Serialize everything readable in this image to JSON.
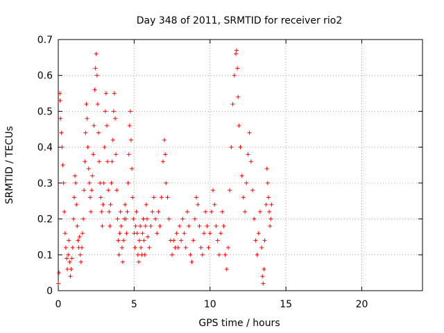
{
  "chart_data": {
    "type": "scatter",
    "title": "Day 348 of 2011, SRMTID for receiver rio2",
    "xlabel": "GPS time / hours",
    "ylabel": "SRMTID / TECUs",
    "xlim": [
      0,
      24
    ],
    "ylim": [
      0,
      0.7
    ],
    "x_ticks": [
      "0",
      "5",
      "10",
      "15",
      "20"
    ],
    "y_ticks": [
      "0",
      "0.1",
      "0.2",
      "0.3",
      "0.4",
      "0.5",
      "0.6",
      "0.7"
    ],
    "grid": true,
    "marker": "plus",
    "series": [
      {
        "color": "#ff0000",
        "points": [
          [
            0.0,
            0.02
          ],
          [
            0.05,
            0.05
          ],
          [
            0.1,
            0.55
          ],
          [
            0.12,
            0.53
          ],
          [
            0.15,
            0.48
          ],
          [
            0.2,
            0.44
          ],
          [
            0.25,
            0.4
          ],
          [
            0.3,
            0.35
          ],
          [
            0.35,
            0.3
          ],
          [
            0.4,
            0.22
          ],
          [
            0.45,
            0.16
          ],
          [
            0.5,
            0.12
          ],
          [
            0.55,
            0.09
          ],
          [
            0.6,
            0.06
          ],
          [
            0.65,
            0.1
          ],
          [
            0.7,
            0.14
          ],
          [
            0.75,
            0.08
          ],
          [
            0.8,
            0.04
          ],
          [
            0.85,
            0.06
          ],
          [
            0.9,
            0.09
          ],
          [
            0.95,
            0.12
          ],
          [
            1.0,
            0.2
          ],
          [
            1.05,
            0.26
          ],
          [
            1.1,
            0.32
          ],
          [
            1.15,
            0.3
          ],
          [
            1.2,
            0.24
          ],
          [
            1.25,
            0.18
          ],
          [
            1.3,
            0.14
          ],
          [
            1.35,
            0.12
          ],
          [
            1.4,
            0.15
          ],
          [
            1.45,
            0.1
          ],
          [
            1.5,
            0.08
          ],
          [
            1.55,
            0.12
          ],
          [
            1.6,
            0.16
          ],
          [
            1.65,
            0.2
          ],
          [
            1.7,
            0.28
          ],
          [
            1.75,
            0.36
          ],
          [
            1.8,
            0.44
          ],
          [
            1.85,
            0.52
          ],
          [
            1.9,
            0.48
          ],
          [
            1.95,
            0.4
          ],
          [
            2.0,
            0.34
          ],
          [
            2.05,
            0.3
          ],
          [
            2.1,
            0.26
          ],
          [
            2.15,
            0.22
          ],
          [
            2.2,
            0.28
          ],
          [
            2.25,
            0.32
          ],
          [
            2.3,
            0.38
          ],
          [
            2.35,
            0.46
          ],
          [
            2.4,
            0.56
          ],
          [
            2.45,
            0.62
          ],
          [
            2.5,
            0.66
          ],
          [
            2.55,
            0.6
          ],
          [
            2.6,
            0.52
          ],
          [
            2.65,
            0.44
          ],
          [
            2.7,
            0.36
          ],
          [
            2.75,
            0.3
          ],
          [
            2.8,
            0.26
          ],
          [
            2.85,
            0.22
          ],
          [
            2.9,
            0.18
          ],
          [
            2.95,
            0.24
          ],
          [
            3.0,
            0.3
          ],
          [
            3.05,
            0.4
          ],
          [
            3.1,
            0.5
          ],
          [
            3.15,
            0.55
          ],
          [
            3.2,
            0.46
          ],
          [
            3.25,
            0.36
          ],
          [
            3.3,
            0.28
          ],
          [
            3.35,
            0.22
          ],
          [
            3.4,
            0.18
          ],
          [
            3.45,
            0.24
          ],
          [
            3.5,
            0.3
          ],
          [
            3.55,
            0.36
          ],
          [
            3.6,
            0.42
          ],
          [
            3.65,
            0.5
          ],
          [
            3.7,
            0.55
          ],
          [
            3.75,
            0.48
          ],
          [
            3.8,
            0.38
          ],
          [
            3.85,
            0.28
          ],
          [
            3.9,
            0.2
          ],
          [
            3.95,
            0.14
          ],
          [
            4.0,
            0.1
          ],
          [
            4.05,
            0.16
          ],
          [
            4.1,
            0.22
          ],
          [
            4.15,
            0.18
          ],
          [
            4.2,
            0.12
          ],
          [
            4.25,
            0.08
          ],
          [
            4.3,
            0.14
          ],
          [
            4.35,
            0.2
          ],
          [
            4.4,
            0.24
          ],
          [
            4.45,
            0.2
          ],
          [
            4.5,
            0.16
          ],
          [
            4.55,
            0.22
          ],
          [
            4.6,
            0.3
          ],
          [
            4.65,
            0.38
          ],
          [
            4.7,
            0.46
          ],
          [
            4.75,
            0.5
          ],
          [
            4.8,
            0.42
          ],
          [
            4.85,
            0.34
          ],
          [
            4.9,
            0.26
          ],
          [
            4.95,
            0.2
          ],
          [
            5.0,
            0.16
          ],
          [
            5.05,
            0.12
          ],
          [
            5.1,
            0.18
          ],
          [
            5.15,
            0.22
          ],
          [
            5.2,
            0.16
          ],
          [
            5.25,
            0.1
          ],
          [
            5.3,
            0.08
          ],
          [
            5.35,
            0.14
          ],
          [
            5.4,
            0.18
          ],
          [
            5.45,
            0.12
          ],
          [
            5.5,
            0.1
          ],
          [
            5.55,
            0.16
          ],
          [
            5.6,
            0.2
          ],
          [
            5.65,
            0.14
          ],
          [
            5.7,
            0.1
          ],
          [
            5.75,
            0.18
          ],
          [
            5.8,
            0.24
          ],
          [
            5.85,
            0.2
          ],
          [
            5.9,
            0.15
          ],
          [
            6.0,
            0.12
          ],
          [
            6.1,
            0.18
          ],
          [
            6.2,
            0.22
          ],
          [
            6.3,
            0.26
          ],
          [
            6.4,
            0.2
          ],
          [
            6.5,
            0.16
          ],
          [
            6.6,
            0.22
          ],
          [
            6.7,
            0.18
          ],
          [
            6.8,
            0.26
          ],
          [
            6.9,
            0.36
          ],
          [
            7.0,
            0.42
          ],
          [
            7.05,
            0.38
          ],
          [
            7.1,
            0.3
          ],
          [
            7.2,
            0.26
          ],
          [
            7.3,
            0.2
          ],
          [
            7.4,
            0.14
          ],
          [
            7.5,
            0.1
          ],
          [
            7.6,
            0.14
          ],
          [
            7.7,
            0.12
          ],
          [
            7.8,
            0.16
          ],
          [
            7.9,
            0.12
          ],
          [
            8.0,
            0.18
          ],
          [
            8.1,
            0.14
          ],
          [
            8.2,
            0.2
          ],
          [
            8.3,
            0.16
          ],
          [
            8.4,
            0.12
          ],
          [
            8.5,
            0.22
          ],
          [
            8.6,
            0.18
          ],
          [
            8.7,
            0.1
          ],
          [
            8.8,
            0.08
          ],
          [
            8.9,
            0.14
          ],
          [
            9.0,
            0.2
          ],
          [
            9.1,
            0.26
          ],
          [
            9.2,
            0.24
          ],
          [
            9.3,
            0.18
          ],
          [
            9.4,
            0.12
          ],
          [
            9.5,
            0.1
          ],
          [
            9.6,
            0.16
          ],
          [
            9.7,
            0.22
          ],
          [
            9.8,
            0.18
          ],
          [
            9.9,
            0.12
          ],
          [
            10.0,
            0.16
          ],
          [
            10.1,
            0.22
          ],
          [
            10.2,
            0.28
          ],
          [
            10.3,
            0.24
          ],
          [
            10.4,
            0.18
          ],
          [
            10.5,
            0.14
          ],
          [
            10.6,
            0.1
          ],
          [
            10.7,
            0.16
          ],
          [
            10.8,
            0.22
          ],
          [
            10.9,
            0.18
          ],
          [
            11.0,
            0.1
          ],
          [
            11.1,
            0.06
          ],
          [
            11.2,
            0.12
          ],
          [
            11.3,
            0.28
          ],
          [
            11.4,
            0.4
          ],
          [
            11.5,
            0.52
          ],
          [
            11.6,
            0.6
          ],
          [
            11.7,
            0.66
          ],
          [
            11.75,
            0.67
          ],
          [
            11.8,
            0.62
          ],
          [
            11.85,
            0.54
          ],
          [
            11.9,
            0.46
          ],
          [
            12.0,
            0.4
          ],
          [
            12.1,
            0.32
          ],
          [
            12.2,
            0.26
          ],
          [
            12.3,
            0.22
          ],
          [
            12.4,
            0.3
          ],
          [
            12.5,
            0.38
          ],
          [
            12.6,
            0.44
          ],
          [
            12.7,
            0.36
          ],
          [
            12.8,
            0.28
          ],
          [
            12.9,
            0.2
          ],
          [
            13.0,
            0.14
          ],
          [
            13.1,
            0.1
          ],
          [
            13.2,
            0.16
          ],
          [
            13.3,
            0.22
          ],
          [
            13.4,
            0.12
          ],
          [
            13.45,
            0.04
          ],
          [
            13.5,
            0.02
          ],
          [
            13.55,
            0.06
          ],
          [
            13.6,
            0.14
          ],
          [
            13.7,
            0.24
          ],
          [
            13.75,
            0.34
          ],
          [
            13.8,
            0.3
          ],
          [
            13.85,
            0.26
          ],
          [
            13.9,
            0.22
          ],
          [
            13.95,
            0.18
          ],
          [
            14.0,
            0.2
          ],
          [
            14.05,
            0.24
          ]
        ]
      }
    ]
  }
}
